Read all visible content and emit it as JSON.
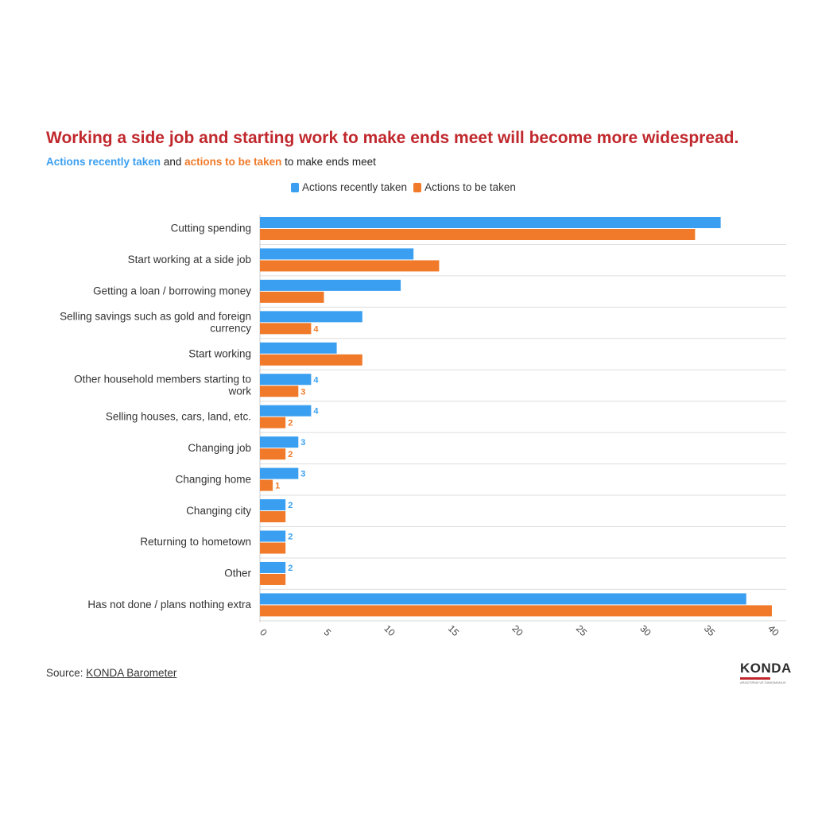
{
  "header": {
    "title": "Working a side job and starting work to make ends meet will become more widespread.",
    "subtitle_part1": "Actions recently taken",
    "subtitle_part2": " and ",
    "subtitle_part3": "actions to be taken",
    "subtitle_part4": " to make ends meet"
  },
  "footer": {
    "source_prefix": "Source: ",
    "source_link": "KONDA Barometer"
  },
  "logo": {
    "word": "KONDA",
    "tagline": "ARAŞTIRMA VE DANIŞMANLIK"
  },
  "colors": {
    "series1": "#3a9ff0",
    "series2": "#f07a2a",
    "title": "#c0282d",
    "grid": "#dddddd"
  },
  "chart_data": {
    "type": "bar",
    "orientation": "horizontal",
    "categories": [
      [
        "Cutting spending"
      ],
      [
        "Start working at a side job"
      ],
      [
        "Getting a loan / borrowing money"
      ],
      [
        "Selling savings such as gold and foreign",
        "currency"
      ],
      [
        "Start working"
      ],
      [
        "Other household members starting to",
        "work"
      ],
      [
        "Selling houses, cars, land, etc."
      ],
      [
        "Changing job"
      ],
      [
        "Changing home"
      ],
      [
        "Changing city"
      ],
      [
        "Returning to hometown"
      ],
      [
        "Other"
      ],
      [
        "Has not done / plans nothing extra"
      ]
    ],
    "series": [
      {
        "name": "Actions recently taken",
        "values": [
          36,
          12,
          11,
          8,
          6,
          4,
          4,
          3,
          3,
          2,
          2,
          2,
          38
        ],
        "labels": [
          "",
          "",
          "",
          "",
          "",
          "4",
          "4",
          "3",
          "3",
          "2",
          "2",
          "2",
          ""
        ]
      },
      {
        "name": "Actions to be taken",
        "values": [
          34,
          14,
          5,
          4,
          8,
          3,
          2,
          2,
          1,
          2,
          2,
          2,
          40
        ],
        "labels": [
          "",
          "",
          "",
          "4",
          "",
          "3",
          "2",
          "2",
          "1",
          "",
          "",
          "",
          ""
        ]
      }
    ],
    "xlim": [
      0,
      40
    ],
    "xticks": [
      "0",
      "5",
      "10",
      "15",
      "20",
      "25",
      "30",
      "35",
      "40"
    ],
    "grid": true,
    "legend_position": "top"
  }
}
